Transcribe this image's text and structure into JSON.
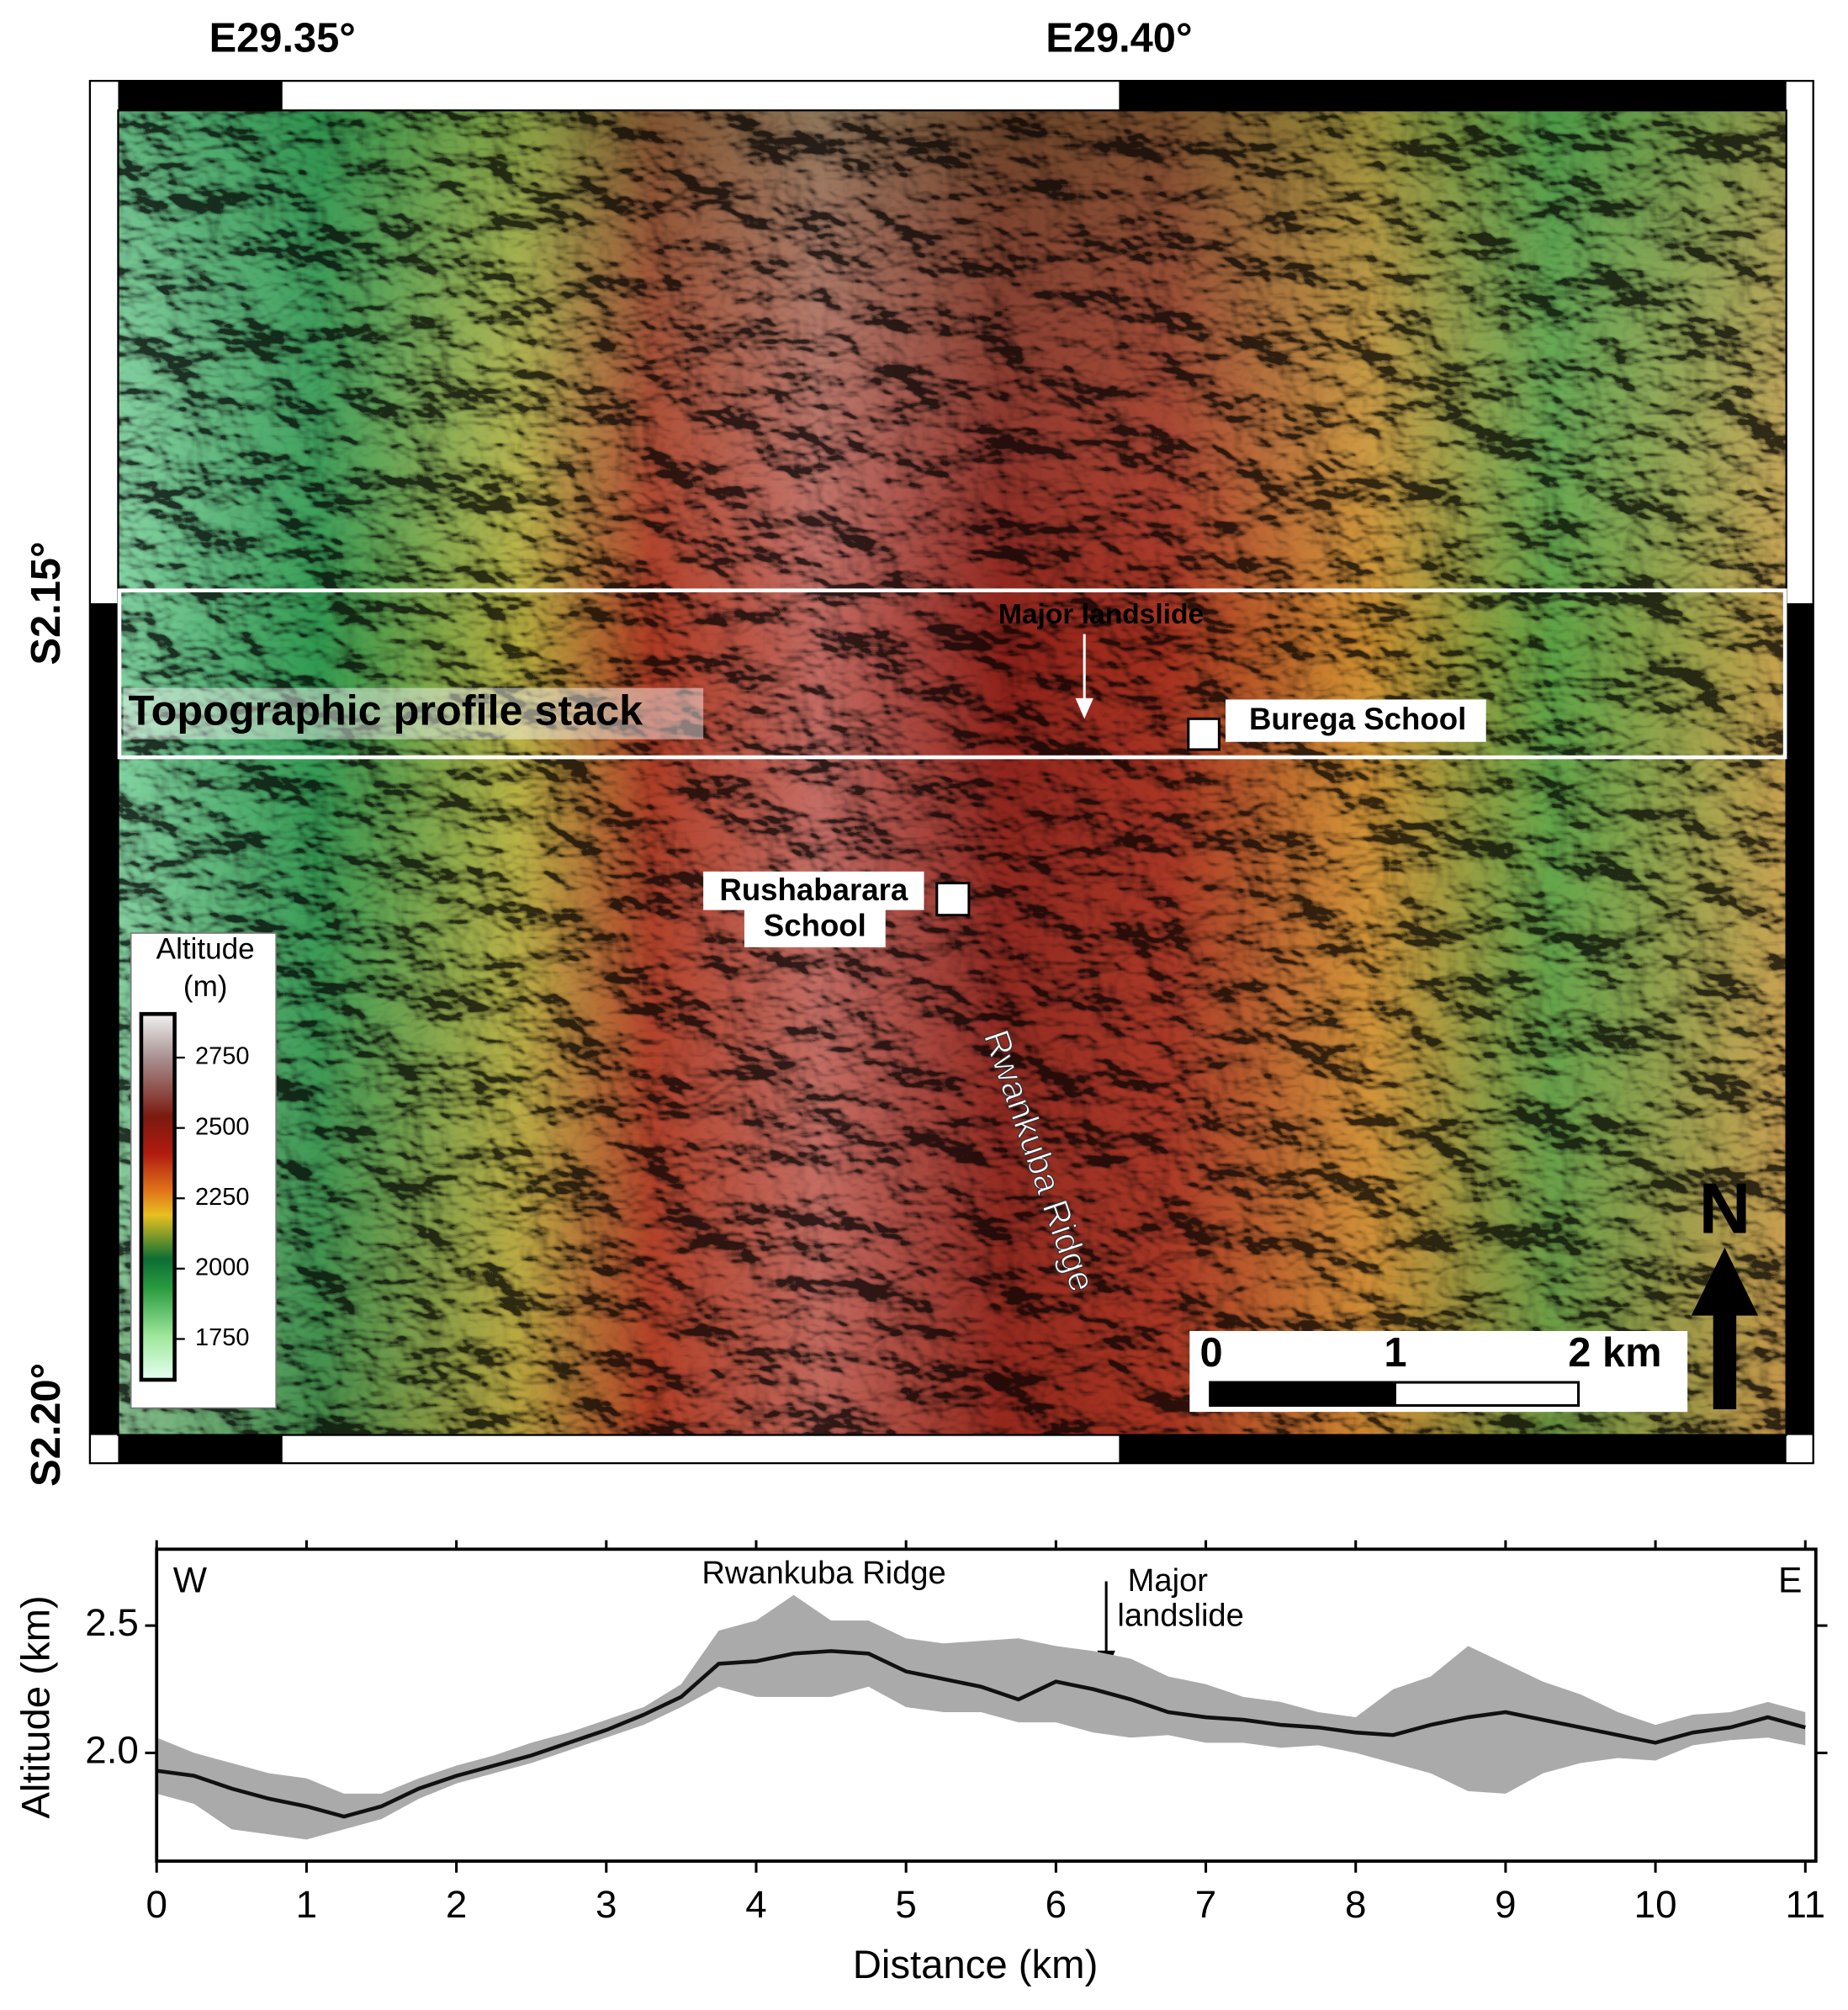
{
  "map": {
    "lon_labels": [
      "E29.35°",
      "E29.40°"
    ],
    "lat_labels": [
      "S2.15°",
      "S2.20°"
    ],
    "profile_label": "Topographic profile stack",
    "landslide_label": "Major landslide",
    "burega_label": "Burega School",
    "rushabarara_label": [
      "Rushabarara",
      "School"
    ],
    "ridge_label": "Rwankuba Ridge",
    "north": "N",
    "colorbar": {
      "title": [
        "Altitude",
        "(m)"
      ],
      "range": [
        1605,
        2905
      ],
      "ticks": [
        1750,
        2000,
        2250,
        2500,
        2750
      ]
    },
    "scalebar": {
      "ticks": [
        0,
        1,
        {
          "value": 2,
          "label": "2 km"
        }
      ]
    }
  },
  "chart_data": {
    "type": "line",
    "xlabel": "Distance (km)",
    "ylabel": "Altitude (km)",
    "annotations": {
      "west": "W",
      "east": "E",
      "ridge": "Rwankuba Ridge",
      "landslide": [
        "Major",
        "landslide"
      ]
    },
    "xlim": [
      0,
      11.07
    ],
    "ylim": [
      1.575,
      2.8
    ],
    "xticks": [
      0,
      1,
      2,
      3,
      4,
      5,
      6,
      7,
      8,
      9,
      10,
      11
    ],
    "yticks": [
      {
        "value": 2,
        "label": "2.0"
      },
      {
        "value": 2.5,
        "label": "2.5"
      }
    ],
    "x": [
      0,
      0.25,
      0.5,
      0.75,
      1,
      1.25,
      1.5,
      1.75,
      2,
      2.25,
      2.5,
      2.75,
      3,
      3.25,
      3.5,
      3.75,
      4,
      4.25,
      4.5,
      4.75,
      5,
      5.25,
      5.5,
      5.75,
      6,
      6.25,
      6.5,
      6.75,
      7,
      7.25,
      7.5,
      7.75,
      8,
      8.25,
      8.5,
      8.75,
      9,
      9.25,
      9.5,
      9.75,
      10,
      10.25,
      10.5,
      10.75,
      11
    ],
    "line": {
      "color": "#111111",
      "values": [
        1.93,
        1.91,
        1.86,
        1.82,
        1.79,
        1.75,
        1.79,
        1.86,
        1.91,
        1.95,
        1.99,
        2.04,
        2.09,
        2.15,
        2.22,
        2.35,
        2.36,
        2.39,
        2.4,
        2.39,
        2.32,
        2.29,
        2.26,
        2.21,
        2.28,
        2.25,
        2.21,
        2.16,
        2.14,
        2.13,
        2.11,
        2.1,
        2.08,
        2.07,
        2.11,
        2.14,
        2.16,
        2.13,
        2.1,
        2.07,
        2.04,
        2.08,
        2.1,
        2.14,
        2.1
      ]
    },
    "band": {
      "color": "#aaaaaa",
      "upper": [
        2.06,
        2.0,
        1.96,
        1.92,
        1.9,
        1.84,
        1.84,
        1.9,
        1.95,
        1.99,
        2.04,
        2.08,
        2.13,
        2.18,
        2.27,
        2.48,
        2.52,
        2.62,
        2.52,
        2.52,
        2.45,
        2.43,
        2.44,
        2.45,
        2.42,
        2.4,
        2.37,
        2.3,
        2.27,
        2.22,
        2.2,
        2.16,
        2.14,
        2.25,
        2.3,
        2.42,
        2.35,
        2.28,
        2.23,
        2.16,
        2.11,
        2.15,
        2.16,
        2.2,
        2.16
      ],
      "lower": [
        1.84,
        1.8,
        1.7,
        1.68,
        1.66,
        1.7,
        1.74,
        1.82,
        1.88,
        1.92,
        1.96,
        2.01,
        2.06,
        2.11,
        2.18,
        2.26,
        2.22,
        2.22,
        2.22,
        2.26,
        2.18,
        2.16,
        2.16,
        2.12,
        2.12,
        2.08,
        2.06,
        2.07,
        2.04,
        2.04,
        2.02,
        2.03,
        2.0,
        1.96,
        1.92,
        1.85,
        1.84,
        1.92,
        1.96,
        1.98,
        1.97,
        2.03,
        2.05,
        2.06,
        2.03
      ]
    }
  }
}
